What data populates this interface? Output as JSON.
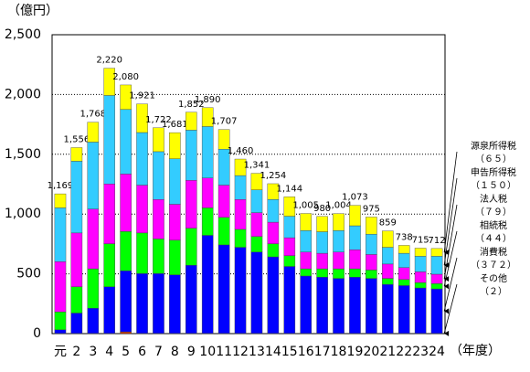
{
  "chart_data": {
    "type": "stacked-bar",
    "y_unit": "（億円）",
    "x_unit": "（年度）",
    "categories": [
      "元",
      "2",
      "3",
      "4",
      "5",
      "6",
      "7",
      "8",
      "9",
      "10",
      "11",
      "12",
      "13",
      "14",
      "15",
      "16",
      "17",
      "18",
      "19",
      "20",
      "21",
      "22",
      "23",
      "24"
    ],
    "ylim": [
      0,
      2500
    ],
    "yticks": [
      0,
      {
        "value": 500,
        "label": "500"
      },
      {
        "value": 1000,
        "label": "1,000"
      },
      {
        "value": 1500,
        "label": "1,500"
      },
      {
        "value": 2000,
        "label": "2,000"
      },
      {
        "value": 2500,
        "label": "2,500"
      }
    ],
    "grid": true,
    "series": [
      {
        "name": "その他",
        "label": "（２）",
        "color": "#cc3300",
        "values": [
          2,
          2,
          2,
          2,
          15,
          2,
          2,
          2,
          2,
          2,
          2,
          2,
          2,
          2,
          2,
          2,
          2,
          2,
          2,
          2,
          2,
          2,
          2,
          2
        ]
      },
      {
        "name": "消費税",
        "label": "（３７２）",
        "color": "#0000ff",
        "values": [
          30,
          170,
          210,
          390,
          510,
          500,
          500,
          490,
          570,
          820,
          740,
          720,
          680,
          640,
          560,
          480,
          470,
          460,
          470,
          460,
          410,
          400,
          380,
          372
        ]
      },
      {
        "name": "相続税",
        "label": "（４４）",
        "color": "#00ff00",
        "values": [
          150,
          220,
          330,
          360,
          330,
          340,
          290,
          290,
          310,
          230,
          230,
          150,
          130,
          110,
          90,
          60,
          70,
          80,
          70,
          70,
          50,
          50,
          45,
          44
        ]
      },
      {
        "name": "法人税",
        "label": "（７９）",
        "color": "#ff00ff",
        "values": [
          420,
          450,
          500,
          500,
          480,
          400,
          330,
          300,
          400,
          250,
          270,
          250,
          200,
          180,
          150,
          140,
          130,
          140,
          160,
          130,
          120,
          100,
          90,
          79
        ]
      },
      {
        "name": "申告所得税",
        "label": "（１５０）",
        "color": "#33ccff",
        "values": [
          450,
          600,
          560,
          740,
          540,
          440,
          400,
          380,
          420,
          430,
          300,
          200,
          190,
          190,
          180,
          180,
          180,
          180,
          200,
          170,
          140,
          120,
          130,
          150
        ]
      },
      {
        "name": "源泉所得税",
        "label": "（６５）",
        "color": "#ffff00",
        "values": [
          117,
          114,
          166,
          228,
          205,
          239,
          200,
          219,
          150,
          158,
          165,
          138,
          139,
          132,
          162,
          143,
          128,
          142,
          171,
          143,
          137,
          66,
          68,
          65
        ]
      }
    ],
    "totals": [
      1169,
      1556,
      1768,
      2220,
      2080,
      1921,
      1722,
      1681,
      1852,
      1890,
      1707,
      1460,
      1341,
      1254,
      1144,
      1005,
      980,
      1004,
      1073,
      975,
      859,
      738,
      715,
      712
    ],
    "value_labels": [
      "1,169",
      "1,556",
      "1,768",
      "2,220",
      "2,080",
      "1,921",
      "1,722",
      "1,681",
      "1,852",
      "1,890",
      "1,707",
      "1,460",
      "1,341",
      "1,254",
      "1,144",
      "1,005",
      "980",
      "1,004",
      "1,073",
      "975",
      "859",
      "738",
      "715",
      "712"
    ]
  }
}
